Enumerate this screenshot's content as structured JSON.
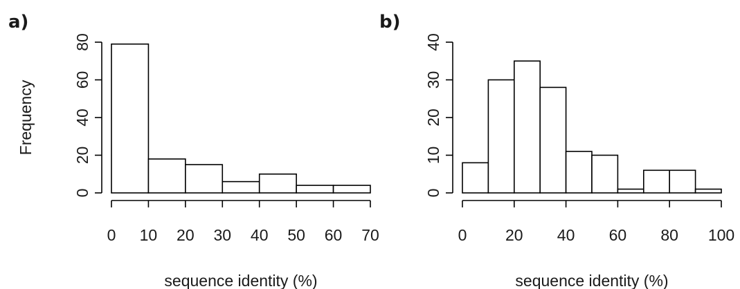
{
  "chart_data": [
    {
      "type": "bar",
      "panel_label": "a)",
      "title": "",
      "xlabel": "sequence identity (%)",
      "ylabel": "Frequency",
      "bin_edges": [
        0,
        10,
        20,
        30,
        40,
        50,
        60,
        70
      ],
      "values": [
        79,
        18,
        15,
        6,
        10,
        4,
        4
      ],
      "xlim": [
        0,
        70
      ],
      "ylim": [
        0,
        80
      ],
      "xticks": [
        0,
        10,
        20,
        30,
        40,
        50,
        60,
        70
      ],
      "yticks": [
        0,
        20,
        40,
        60,
        80
      ],
      "grid": false,
      "legend": "none"
    },
    {
      "type": "bar",
      "panel_label": "b)",
      "title": "",
      "xlabel": "sequence identity (%)",
      "ylabel": "",
      "bin_edges": [
        0,
        10,
        20,
        30,
        40,
        50,
        60,
        70,
        80,
        90,
        100
      ],
      "values": [
        8,
        30,
        35,
        28,
        11,
        10,
        1,
        6,
        6,
        1
      ],
      "xlim": [
        0,
        100
      ],
      "ylim": [
        0,
        40
      ],
      "xticks": [
        0,
        20,
        40,
        60,
        80,
        100
      ],
      "yticks": [
        0,
        10,
        20,
        30,
        40
      ],
      "grid": false,
      "legend": "none"
    }
  ]
}
